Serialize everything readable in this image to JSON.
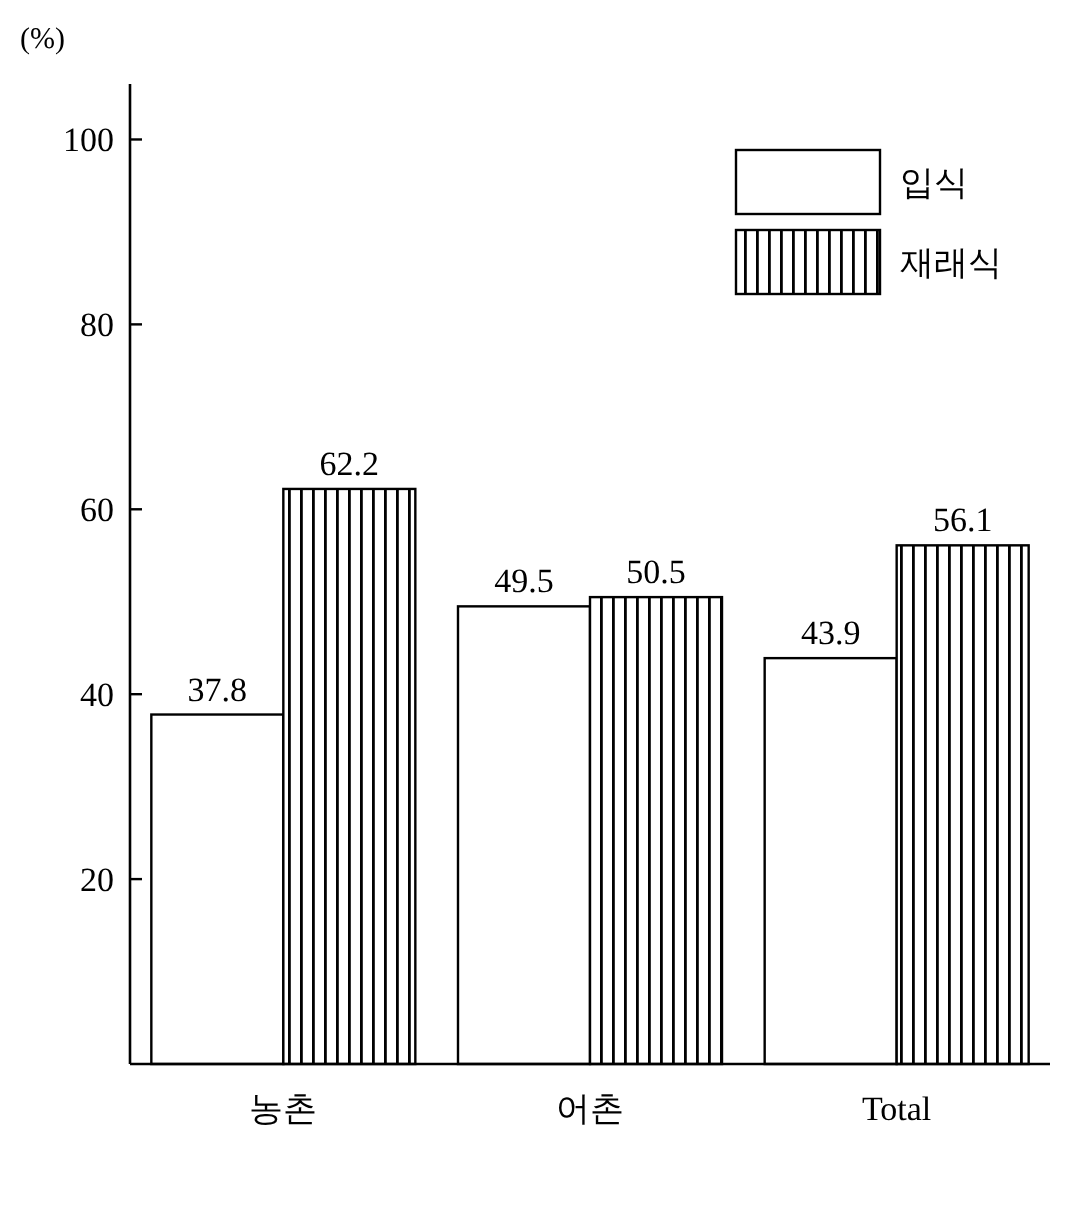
{
  "chart_data": {
    "type": "bar",
    "ylabel": "(%)",
    "categories": [
      "농촌",
      "어촌",
      "Total"
    ],
    "series": [
      {
        "name": "입식",
        "color": "#ffffff",
        "values": [
          37.8,
          49.5,
          43.9
        ]
      },
      {
        "name": "재래식",
        "color": "#000000",
        "values": [
          62.2,
          50.5,
          56.1
        ]
      }
    ],
    "ylim": [
      0,
      106
    ],
    "yticks": [
      20,
      40,
      60,
      80,
      100
    ],
    "data_labels": true,
    "legend": "top right",
    "grid": false
  }
}
